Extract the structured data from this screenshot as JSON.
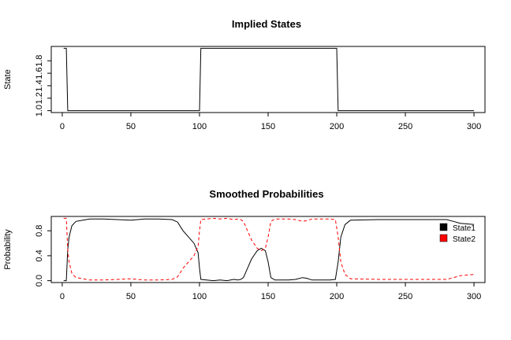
{
  "chart_data": [
    {
      "type": "line",
      "title": "Implied States",
      "xlabel": "",
      "ylabel": "State",
      "xlim": [
        -8,
        308
      ],
      "ylim": [
        0.97,
        2.03
      ],
      "xticks": [
        0,
        50,
        100,
        150,
        200,
        250,
        300
      ],
      "yticks": [
        1.0,
        1.2,
        1.4,
        1.6,
        1.8
      ],
      "ytick_labels": [
        "1.0",
        "1.2",
        "1.4",
        "1.6",
        "1.8"
      ],
      "grid": false,
      "legend": null,
      "series": [
        {
          "style": "step",
          "color": "#000000",
          "dash": "solid",
          "points": [
            [
              1,
              2
            ],
            [
              3,
              2
            ],
            [
              4,
              1
            ],
            [
              100,
              1
            ],
            [
              101,
              2
            ],
            [
              200,
              2
            ],
            [
              201,
              1
            ],
            [
              300,
              1
            ]
          ]
        }
      ]
    },
    {
      "type": "line",
      "title": "Smoothed Probabilities",
      "xlabel": "",
      "ylabel": "Probability",
      "xlim": [
        -8,
        308
      ],
      "ylim": [
        -0.03,
        1.03
      ],
      "xticks": [
        0,
        50,
        100,
        150,
        200,
        250,
        300
      ],
      "yticks": [
        0.0,
        0.4,
        0.8
      ],
      "ytick_labels": [
        "0.0",
        "0.4",
        "0.8"
      ],
      "grid": false,
      "legend": {
        "placement": "top-right",
        "entries": [
          "State1",
          "State2"
        ]
      },
      "series": [
        {
          "name": "State1",
          "color": "#000000",
          "dash": "solid",
          "points": [
            [
              1,
              0.0
            ],
            [
              3,
              0.0
            ],
            [
              4,
              0.5
            ],
            [
              5,
              0.7
            ],
            [
              7,
              0.88
            ],
            [
              10,
              0.95
            ],
            [
              15,
              0.97
            ],
            [
              20,
              0.99
            ],
            [
              30,
              0.99
            ],
            [
              40,
              0.98
            ],
            [
              50,
              0.97
            ],
            [
              60,
              0.99
            ],
            [
              70,
              0.99
            ],
            [
              80,
              0.98
            ],
            [
              84,
              0.94
            ],
            [
              88,
              0.8
            ],
            [
              92,
              0.7
            ],
            [
              96,
              0.6
            ],
            [
              99,
              0.45
            ],
            [
              100,
              0.2
            ],
            [
              101,
              0.02
            ],
            [
              105,
              0.01
            ],
            [
              110,
              0.0
            ],
            [
              115,
              0.01
            ],
            [
              120,
              0.0
            ],
            [
              125,
              0.02
            ],
            [
              128,
              0.01
            ],
            [
              130,
              0.02
            ],
            [
              132,
              0.05
            ],
            [
              135,
              0.2
            ],
            [
              138,
              0.35
            ],
            [
              142,
              0.48
            ],
            [
              145,
              0.52
            ],
            [
              148,
              0.48
            ],
            [
              150,
              0.3
            ],
            [
              152,
              0.05
            ],
            [
              155,
              0.01
            ],
            [
              165,
              0.01
            ],
            [
              170,
              0.02
            ],
            [
              175,
              0.05
            ],
            [
              178,
              0.04
            ],
            [
              182,
              0.01
            ],
            [
              195,
              0.01
            ],
            [
              199,
              0.02
            ],
            [
              201,
              0.3
            ],
            [
              203,
              0.7
            ],
            [
              206,
              0.9
            ],
            [
              210,
              0.97
            ],
            [
              230,
              0.98
            ],
            [
              260,
              0.98
            ],
            [
              280,
              0.98
            ],
            [
              285,
              0.95
            ],
            [
              290,
              0.92
            ],
            [
              295,
              0.91
            ],
            [
              300,
              0.9
            ]
          ]
        },
        {
          "name": "State2",
          "color": "#ff0000",
          "dash": "dashed",
          "points": [
            [
              1,
              1.0
            ],
            [
              3,
              1.0
            ],
            [
              4,
              0.5
            ],
            [
              5,
              0.3
            ],
            [
              7,
              0.12
            ],
            [
              10,
              0.05
            ],
            [
              15,
              0.03
            ],
            [
              20,
              0.01
            ],
            [
              30,
              0.01
            ],
            [
              40,
              0.02
            ],
            [
              50,
              0.03
            ],
            [
              60,
              0.01
            ],
            [
              70,
              0.01
            ],
            [
              80,
              0.02
            ],
            [
              84,
              0.06
            ],
            [
              88,
              0.2
            ],
            [
              92,
              0.3
            ],
            [
              96,
              0.4
            ],
            [
              99,
              0.55
            ],
            [
              100,
              0.8
            ],
            [
              101,
              0.98
            ],
            [
              105,
              0.99
            ],
            [
              110,
              1.0
            ],
            [
              115,
              0.99
            ],
            [
              120,
              1.0
            ],
            [
              125,
              0.98
            ],
            [
              128,
              0.99
            ],
            [
              130,
              0.98
            ],
            [
              132,
              0.95
            ],
            [
              135,
              0.8
            ],
            [
              138,
              0.65
            ],
            [
              142,
              0.52
            ],
            [
              145,
              0.48
            ],
            [
              148,
              0.52
            ],
            [
              150,
              0.7
            ],
            [
              152,
              0.95
            ],
            [
              155,
              0.99
            ],
            [
              165,
              0.99
            ],
            [
              170,
              0.98
            ],
            [
              175,
              0.95
            ],
            [
              178,
              0.96
            ],
            [
              182,
              0.99
            ],
            [
              195,
              0.99
            ],
            [
              199,
              0.98
            ],
            [
              201,
              0.7
            ],
            [
              203,
              0.3
            ],
            [
              206,
              0.1
            ],
            [
              210,
              0.03
            ],
            [
              230,
              0.02
            ],
            [
              260,
              0.02
            ],
            [
              280,
              0.02
            ],
            [
              285,
              0.05
            ],
            [
              290,
              0.08
            ],
            [
              295,
              0.09
            ],
            [
              300,
              0.1
            ]
          ]
        }
      ]
    }
  ]
}
